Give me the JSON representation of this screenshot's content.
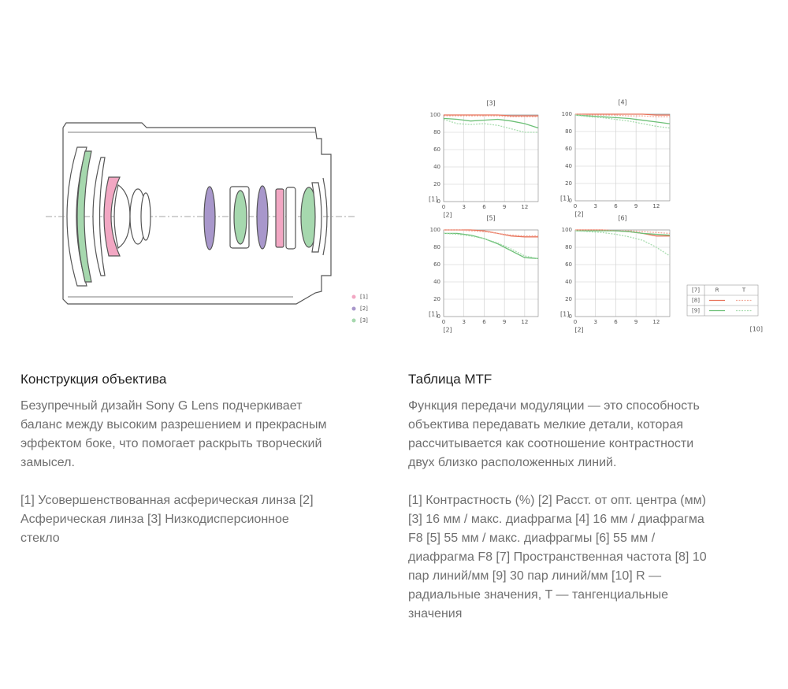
{
  "lens_diagram": {
    "legend": [
      {
        "label": "[1]",
        "color": "#f2a7c3"
      },
      {
        "label": "[2]",
        "color": "#a897cb"
      },
      {
        "label": "[3]",
        "color": "#a6d8ae"
      }
    ]
  },
  "chart_data": [
    {
      "type": "line",
      "title": "[3]",
      "y_label": "[1]",
      "x_label": "[2]",
      "x": [
        0,
        2,
        4,
        6,
        8,
        10,
        12,
        14
      ],
      "xlim": [
        0,
        14
      ],
      "ylim": [
        0,
        100
      ],
      "xticks": [
        0,
        3,
        6,
        9,
        12
      ],
      "yticks": [
        0,
        20,
        40,
        60,
        80,
        100
      ],
      "grid": true,
      "series": [
        {
          "color": "#e8735a",
          "dash": "solid",
          "values": [
            100,
            100,
            100,
            100,
            100,
            99,
            99,
            99
          ]
        },
        {
          "color": "#f2a99a",
          "dash": "dotted",
          "values": [
            99,
            99,
            99,
            99,
            99,
            98,
            98,
            98
          ]
        },
        {
          "color": "#6cbf76",
          "dash": "solid",
          "values": [
            96,
            95,
            93,
            94,
            95,
            93,
            90,
            85
          ]
        },
        {
          "color": "#a8dcaf",
          "dash": "dotted",
          "values": [
            95,
            90,
            89,
            90,
            88,
            84,
            80,
            80
          ]
        }
      ]
    },
    {
      "type": "line",
      "title": "[4]",
      "y_label": "[1]",
      "x_label": "[2]",
      "x": [
        0,
        2,
        4,
        6,
        8,
        10,
        12,
        14
      ],
      "xlim": [
        0,
        14
      ],
      "ylim": [
        0,
        100
      ],
      "xticks": [
        0,
        3,
        6,
        9,
        12
      ],
      "yticks": [
        0,
        20,
        40,
        60,
        80,
        100
      ],
      "grid": true,
      "series": [
        {
          "color": "#e8735a",
          "dash": "solid",
          "values": [
            100,
            100,
            100,
            100,
            100,
            100,
            99,
            99
          ]
        },
        {
          "color": "#f2a99a",
          "dash": "dotted",
          "values": [
            100,
            99,
            99,
            99,
            98,
            98,
            97,
            97
          ]
        },
        {
          "color": "#6cbf76",
          "dash": "solid",
          "values": [
            99,
            98,
            97,
            96,
            95,
            93,
            91,
            89
          ]
        },
        {
          "color": "#a8dcaf",
          "dash": "dotted",
          "values": [
            99,
            97,
            96,
            94,
            92,
            89,
            86,
            84
          ]
        }
      ]
    },
    {
      "type": "line",
      "title": "[5]",
      "y_label": "[1]",
      "x_label": "[2]",
      "x": [
        0,
        2,
        4,
        6,
        8,
        10,
        12,
        14
      ],
      "xlim": [
        0,
        14
      ],
      "ylim": [
        0,
        100
      ],
      "xticks": [
        0,
        3,
        6,
        9,
        12
      ],
      "yticks": [
        0,
        20,
        40,
        60,
        80,
        100
      ],
      "grid": true,
      "series": [
        {
          "color": "#e8735a",
          "dash": "solid",
          "values": [
            100,
            100,
            100,
            99,
            96,
            93,
            92,
            92
          ]
        },
        {
          "color": "#f2a99a",
          "dash": "dotted",
          "values": [
            100,
            100,
            99,
            98,
            96,
            94,
            93,
            93
          ]
        },
        {
          "color": "#6cbf76",
          "dash": "solid",
          "values": [
            96,
            96,
            94,
            90,
            84,
            76,
            68,
            67
          ]
        },
        {
          "color": "#a8dcaf",
          "dash": "dotted",
          "values": [
            96,
            95,
            93,
            90,
            85,
            78,
            70,
            67
          ]
        }
      ]
    },
    {
      "type": "line",
      "title": "[6]",
      "y_label": "[1]",
      "x_label": "[2]",
      "x": [
        0,
        2,
        4,
        6,
        8,
        10,
        12,
        14
      ],
      "xlim": [
        0,
        14
      ],
      "ylim": [
        0,
        100
      ],
      "xticks": [
        0,
        3,
        6,
        9,
        12
      ],
      "yticks": [
        0,
        20,
        40,
        60,
        80,
        100
      ],
      "grid": true,
      "series": [
        {
          "color": "#e8735a",
          "dash": "solid",
          "values": [
            100,
            100,
            100,
            99,
            98,
            96,
            93,
            93
          ]
        },
        {
          "color": "#f2a99a",
          "dash": "dotted",
          "values": [
            100,
            100,
            100,
            99,
            99,
            98,
            97,
            96
          ]
        },
        {
          "color": "#6cbf76",
          "dash": "solid",
          "values": [
            99,
            99,
            99,
            99,
            98,
            96,
            95,
            94
          ]
        },
        {
          "color": "#a8dcaf",
          "dash": "dotted",
          "values": [
            99,
            98,
            97,
            95,
            92,
            88,
            80,
            70
          ]
        }
      ]
    }
  ],
  "mtf_legend": {
    "header": [
      "[7]",
      "R",
      "T"
    ],
    "rows": [
      {
        "label": "[8]",
        "color": "#e8735a",
        "color_t": "#f2a99a"
      },
      {
        "label": "[9]",
        "color": "#6cbf76",
        "color_t": "#a8dcaf"
      }
    ],
    "note": "[10]"
  },
  "sections": [
    {
      "heading": "Конструкция объектива",
      "paragraphs": [
        "Безупречный дизайн Sony G Lens подчеркивает баланс между высоким разрешением и прекрасным эффектом боке, что помогает раскрыть творческий замысел.",
        "[1] Усовершенствованная асферическая линза [2] Асферическая линза [3] Низкодисперсионное стекло"
      ]
    },
    {
      "heading": "Таблица MTF",
      "paragraphs": [
        "Функция передачи модуляции — это способность объектива передавать мелкие детали, которая рассчитывается как соотношение контрастности двух близко расположенных линий.",
        "[1] Контрастность (%) [2] Расст. от опт. центра (мм) [3] 16 мм / макс. диафрагма [4] 16 мм / диафрагма F8 [5] 55 мм / макс. диафрагмы [6] 55 мм / диафрагма F8 [7] Пространственная частота [8] 10 пар линий/мм [9] 30 пар линий/мм [10] R — радиальные значения, T — тангенциальные значения"
      ]
    }
  ]
}
